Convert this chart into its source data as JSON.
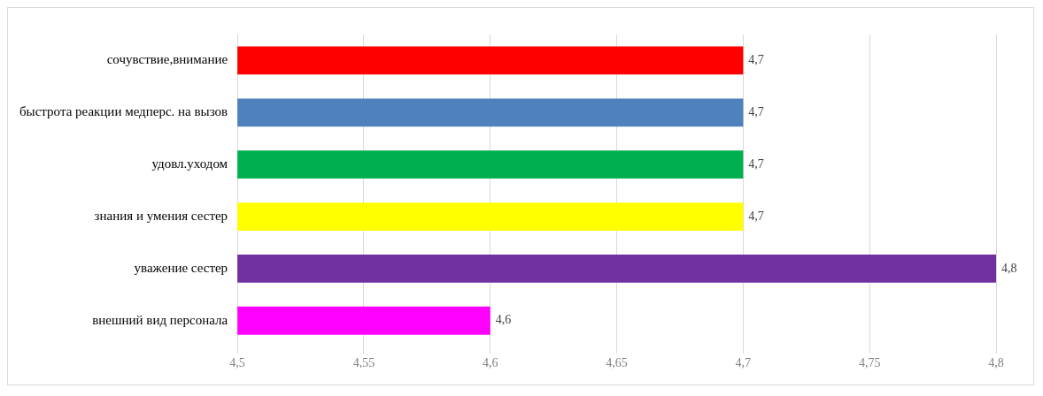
{
  "chart_data": {
    "type": "bar",
    "orientation": "horizontal",
    "categories": [
      "сочувствие,внимание",
      "быстрота реакции медперс. на вызов",
      "удовл.уходом",
      "знания и умения сестер",
      "уважение сестер",
      "внешний вид персонала"
    ],
    "values": [
      4.7,
      4.7,
      4.7,
      4.7,
      4.8,
      4.6
    ],
    "colors": [
      "#ff0000",
      "#4f81bd",
      "#00b050",
      "#ffff00",
      "#7030a0",
      "#ff00ff"
    ],
    "value_labels": [
      "4,7",
      "4,7",
      "4,7",
      "4,7",
      "4,8",
      "4,6"
    ],
    "xlim": [
      4.5,
      4.8
    ],
    "xticks": [
      {
        "value": 4.5,
        "label": "4,5"
      },
      {
        "value": 4.55,
        "label": "4,55"
      },
      {
        "value": 4.6,
        "label": "4,6"
      },
      {
        "value": 4.65,
        "label": "4,65"
      },
      {
        "value": 4.7,
        "label": "4,7"
      },
      {
        "value": 4.75,
        "label": "4,75"
      },
      {
        "value": 4.8,
        "label": "4,8"
      }
    ],
    "grid": "x",
    "legend": false
  }
}
